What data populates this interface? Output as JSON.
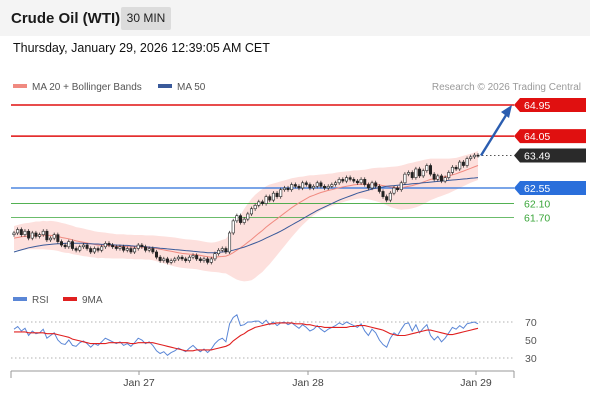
{
  "header": {
    "title": "Crude Oil (WTI)",
    "timeframe": "30 MIN"
  },
  "timestamp": "Thursday, January 29, 2026 12:39:05 AM CET",
  "copyright": "Research © 2026 Trading Central",
  "colors": {
    "resistance": "#e01010",
    "pivot": "#2a6fdb",
    "support": "#3aa63a",
    "last_price": "#2a2a2a",
    "ma20_legend": "#f08a80",
    "ma50": "#3a5a9a",
    "bands_fill": "#fde0dd",
    "candle": "#222222",
    "rsi": "#5a86d6",
    "rsi_ma": "#e02020",
    "forecast_arrow": "#2a5db0"
  },
  "chart_data": [
    {
      "type": "candlestick",
      "title": "",
      "xlabel": "",
      "ylabel": "",
      "x_ticks": [
        "Jan 27",
        "Jan 28",
        "Jan 29"
      ],
      "ylim": [
        59.7,
        65.3
      ],
      "grid": false,
      "legend": {
        "placement": "top-left",
        "entries": [
          {
            "name": "MA 20 + Bollinger Bands",
            "color": "#f08a80"
          },
          {
            "name": "MA 50",
            "color": "#3a5a9a"
          }
        ]
      },
      "levels": [
        {
          "label": "64.95",
          "value": 64.95,
          "kind": "resistance"
        },
        {
          "label": "64.05",
          "value": 64.05,
          "kind": "resistance"
        },
        {
          "label": "63.49",
          "value": 63.49,
          "kind": "last_price"
        },
        {
          "label": "62.55",
          "value": 62.55,
          "kind": "pivot"
        },
        {
          "label": "62.10",
          "value": 62.1,
          "kind": "support"
        },
        {
          "label": "61.70",
          "value": 61.7,
          "kind": "support"
        }
      ],
      "close": [
        61.25,
        61.35,
        61.2,
        61.3,
        61.1,
        61.25,
        61.15,
        61.2,
        61.3,
        61.05,
        61.1,
        61.2,
        61.0,
        60.9,
        60.85,
        61.0,
        60.8,
        60.75,
        60.85,
        60.9,
        60.8,
        60.7,
        60.8,
        60.75,
        60.85,
        60.95,
        60.9,
        60.85,
        60.8,
        60.85,
        60.75,
        60.8,
        60.7,
        60.8,
        60.9,
        60.85,
        60.75,
        60.8,
        60.7,
        60.55,
        60.45,
        60.5,
        60.4,
        60.45,
        60.5,
        60.55,
        60.5,
        60.45,
        60.55,
        60.6,
        60.5,
        60.45,
        60.5,
        60.4,
        60.5,
        60.65,
        60.75,
        60.8,
        60.7,
        61.25,
        61.6,
        61.75,
        61.55,
        61.65,
        61.8,
        61.95,
        62.05,
        62.15,
        62.1,
        62.3,
        62.2,
        62.4,
        62.3,
        62.5,
        62.55,
        62.5,
        62.65,
        62.6,
        62.55,
        62.7,
        62.65,
        62.55,
        62.6,
        62.7,
        62.6,
        62.55,
        62.6,
        62.65,
        62.7,
        62.8,
        62.75,
        62.85,
        62.8,
        62.75,
        62.7,
        62.8,
        62.65,
        62.55,
        62.7,
        62.6,
        62.45,
        62.3,
        62.2,
        62.4,
        62.55,
        62.5,
        62.7,
        62.95,
        63.0,
        62.85,
        63.1,
        62.9,
        63.05,
        63.2,
        62.95,
        62.8,
        62.9,
        62.75,
        62.85,
        63.0,
        63.15,
        63.1,
        63.3,
        63.2,
        63.4,
        63.45,
        63.5,
        63.49
      ],
      "ma20": [
        61.1,
        61.12,
        61.14,
        61.15,
        61.16,
        61.17,
        61.18,
        61.18,
        61.19,
        61.18,
        61.18,
        61.17,
        61.15,
        61.12,
        61.1,
        61.08,
        61.05,
        61.02,
        61.0,
        60.98,
        60.96,
        60.94,
        60.92,
        60.9,
        60.9,
        60.89,
        60.88,
        60.87,
        60.86,
        60.86,
        60.86,
        60.85,
        60.85,
        60.84,
        60.84,
        60.84,
        60.83,
        60.83,
        60.82,
        60.8,
        60.78,
        60.76,
        60.74,
        60.72,
        60.7,
        60.68,
        60.66,
        60.65,
        60.64,
        60.63,
        60.62,
        60.6,
        60.58,
        60.56,
        60.55,
        60.55,
        60.56,
        60.57,
        60.58,
        60.62,
        60.68,
        60.75,
        60.82,
        60.9,
        60.98,
        61.06,
        61.15,
        61.24,
        61.32,
        61.42,
        61.5,
        61.58,
        61.66,
        61.74,
        61.82,
        61.9,
        61.98,
        62.05,
        62.12,
        62.18,
        62.24,
        62.3,
        62.34,
        62.38,
        62.42,
        62.45,
        62.48,
        62.5,
        62.53,
        62.56,
        62.58,
        62.6,
        62.62,
        62.64,
        62.65,
        62.66,
        62.66,
        62.66,
        62.66,
        62.65,
        62.64,
        62.62,
        62.6,
        62.58,
        62.57,
        62.56,
        62.56,
        62.58,
        62.6,
        62.62,
        62.65,
        62.68,
        62.72,
        62.76,
        62.8,
        62.82,
        62.84,
        62.86,
        62.88,
        62.9,
        62.93,
        62.96,
        63.0,
        63.04,
        63.08,
        63.12,
        63.16,
        63.2
      ],
      "ma50": [
        60.7,
        60.73,
        60.76,
        60.79,
        60.82,
        60.84,
        60.86,
        60.88,
        60.9,
        60.91,
        60.92,
        60.93,
        60.94,
        60.94,
        60.95,
        60.95,
        60.95,
        60.95,
        60.95,
        60.95,
        60.94,
        60.94,
        60.93,
        60.93,
        60.92,
        60.92,
        60.91,
        60.91,
        60.9,
        60.9,
        60.89,
        60.89,
        60.88,
        60.87,
        60.87,
        60.86,
        60.85,
        60.84,
        60.83,
        60.82,
        60.81,
        60.8,
        60.79,
        60.78,
        60.77,
        60.76,
        60.75,
        60.74,
        60.73,
        60.72,
        60.71,
        60.7,
        60.69,
        60.68,
        60.68,
        60.68,
        60.69,
        60.7,
        60.71,
        60.73,
        60.75,
        60.78,
        60.81,
        60.84,
        60.88,
        60.92,
        60.96,
        61.0,
        61.05,
        61.1,
        61.15,
        61.2,
        61.25,
        61.3,
        61.36,
        61.42,
        61.48,
        61.54,
        61.6,
        61.66,
        61.72,
        61.78,
        61.84,
        61.9,
        61.95,
        62.0,
        62.05,
        62.1,
        62.15,
        62.2,
        62.24,
        62.28,
        62.32,
        62.36,
        62.4,
        62.43,
        62.46,
        62.49,
        62.52,
        62.54,
        62.56,
        62.58,
        62.6,
        62.61,
        62.62,
        62.63,
        62.64,
        62.65,
        62.66,
        62.67,
        62.68,
        62.69,
        62.7,
        62.71,
        62.72,
        62.73,
        62.74,
        62.75,
        62.76,
        62.77,
        62.78,
        62.79,
        62.8,
        62.81,
        62.82,
        62.83,
        62.84,
        62.85
      ],
      "bb_width": [
        0.35,
        0.36,
        0.37,
        0.38,
        0.38,
        0.39,
        0.4,
        0.4,
        0.41,
        0.41,
        0.42,
        0.42,
        0.42,
        0.42,
        0.42,
        0.41,
        0.41,
        0.4,
        0.4,
        0.4,
        0.39,
        0.39,
        0.38,
        0.38,
        0.37,
        0.37,
        0.36,
        0.36,
        0.35,
        0.35,
        0.35,
        0.35,
        0.35,
        0.35,
        0.35,
        0.35,
        0.35,
        0.35,
        0.36,
        0.37,
        0.38,
        0.39,
        0.4,
        0.41,
        0.42,
        0.42,
        0.42,
        0.42,
        0.42,
        0.42,
        0.42,
        0.42,
        0.42,
        0.42,
        0.42,
        0.43,
        0.45,
        0.48,
        0.5,
        0.6,
        0.72,
        0.85,
        0.95,
        1.05,
        1.12,
        1.18,
        1.2,
        1.2,
        1.2,
        1.18,
        1.15,
        1.1,
        1.05,
        1.0,
        0.95,
        0.9,
        0.85,
        0.8,
        0.75,
        0.7,
        0.66,
        0.62,
        0.58,
        0.55,
        0.52,
        0.5,
        0.48,
        0.47,
        0.46,
        0.45,
        0.44,
        0.43,
        0.42,
        0.42,
        0.41,
        0.41,
        0.42,
        0.44,
        0.46,
        0.48,
        0.5,
        0.52,
        0.55,
        0.58,
        0.6,
        0.62,
        0.64,
        0.65,
        0.66,
        0.66,
        0.66,
        0.65,
        0.64,
        0.62,
        0.6,
        0.58,
        0.56,
        0.54,
        0.52,
        0.5,
        0.48,
        0.46,
        0.45,
        0.44,
        0.43,
        0.42,
        0.42,
        0.42
      ],
      "forecast": {
        "from": 63.49,
        "to": 64.95
      }
    },
    {
      "type": "line",
      "title": "",
      "xlabel": "",
      "ylabel": "",
      "ylim": [
        20,
        80
      ],
      "y_ticks": [
        30,
        50,
        70
      ],
      "legend": {
        "placement": "top-left",
        "entries": [
          {
            "name": "RSI",
            "color": "#5a86d6"
          },
          {
            "name": "9MA",
            "color": "#e02020"
          }
        ]
      },
      "rsi": [
        62,
        65,
        60,
        63,
        55,
        60,
        57,
        58,
        62,
        52,
        55,
        58,
        50,
        46,
        45,
        50,
        44,
        43,
        47,
        49,
        46,
        42,
        46,
        44,
        48,
        52,
        50,
        48,
        46,
        48,
        44,
        46,
        43,
        47,
        52,
        50,
        46,
        48,
        44,
        38,
        35,
        37,
        33,
        36,
        38,
        41,
        39,
        37,
        41,
        44,
        40,
        37,
        40,
        36,
        40,
        46,
        50,
        52,
        48,
        68,
        75,
        78,
        66,
        67,
        70,
        70,
        71,
        71,
        68,
        72,
        67,
        70,
        66,
        69,
        70,
        67,
        69,
        66,
        63,
        67,
        64,
        60,
        62,
        66,
        62,
        59,
        62,
        64,
        66,
        69,
        67,
        70,
        68,
        66,
        64,
        68,
        60,
        55,
        62,
        58,
        50,
        45,
        42,
        52,
        58,
        55,
        62,
        68,
        69,
        60,
        67,
        58,
        63,
        67,
        55,
        50,
        54,
        48,
        52,
        58,
        64,
        62,
        66,
        63,
        68,
        69,
        70,
        68
      ],
      "ma9": [
        59,
        59,
        59,
        59,
        58,
        58,
        58,
        58,
        58,
        57,
        57,
        57,
        56,
        55,
        54,
        53,
        51,
        50,
        49,
        48,
        47,
        46,
        46,
        46,
        46,
        46,
        47,
        47,
        47,
        47,
        47,
        47,
        46,
        46,
        47,
        47,
        47,
        47,
        47,
        46,
        45,
        44,
        43,
        42,
        41,
        40,
        39,
        38,
        38,
        38,
        39,
        39,
        39,
        39,
        39,
        40,
        41,
        42,
        43,
        45,
        49,
        52,
        55,
        57,
        60,
        62,
        64,
        65,
        66,
        67,
        68,
        68,
        69,
        69,
        69,
        69,
        69,
        68,
        68,
        68,
        67,
        67,
        66,
        65,
        65,
        64,
        64,
        64,
        64,
        64,
        64,
        64,
        65,
        65,
        66,
        66,
        66,
        65,
        64,
        63,
        62,
        61,
        59,
        57,
        56,
        55,
        55,
        55,
        56,
        57,
        58,
        59,
        60,
        61,
        61,
        60,
        59,
        58,
        57,
        56,
        56,
        57,
        58,
        59,
        60,
        61,
        62,
        63
      ]
    }
  ]
}
